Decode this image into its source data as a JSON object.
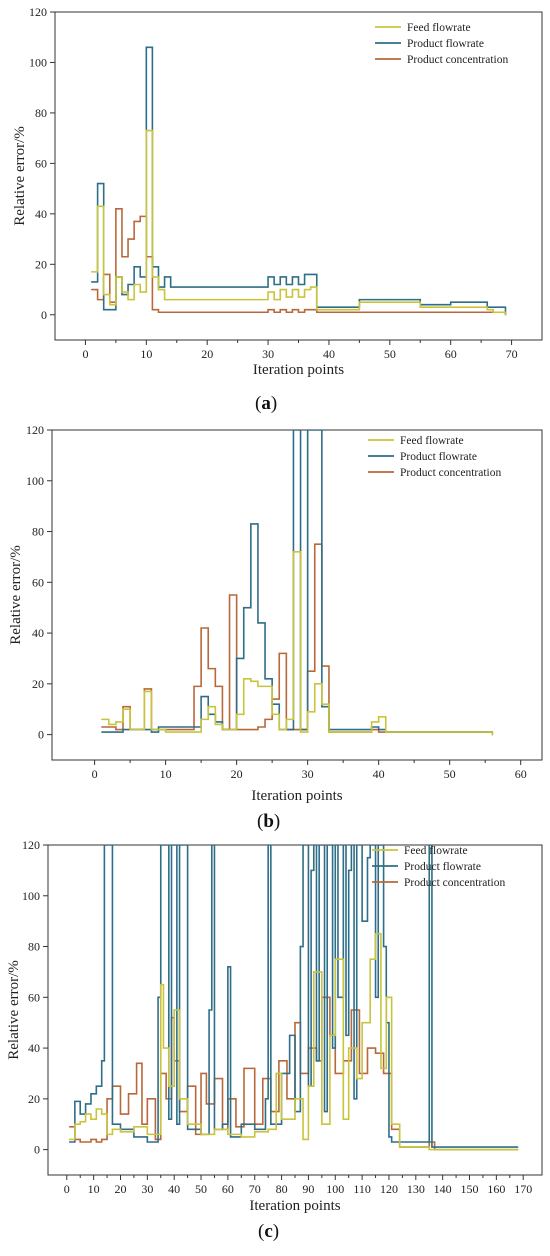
{
  "colors": {
    "feed": "#c9c43c",
    "product": "#2f6e88",
    "concentration": "#b8683a",
    "axis": "#333333"
  },
  "chart_data": [
    {
      "id": "a",
      "type": "line",
      "panel_label": "a",
      "xlabel": "Iteration points",
      "ylabel": "Relative error/%",
      "xlim": [
        -5,
        75
      ],
      "ylim": [
        -10,
        120
      ],
      "xticks": [
        0,
        10,
        20,
        30,
        40,
        50,
        60,
        70
      ],
      "yticks": [
        0,
        20,
        40,
        60,
        80,
        100,
        120
      ],
      "legend_position": "top-right",
      "series": [
        {
          "name": "Feed flowrate",
          "color_key": "feed",
          "x": [
            1,
            2,
            3,
            4,
            5,
            6,
            7,
            8,
            9,
            10,
            11,
            12,
            13,
            14,
            20,
            29,
            30,
            31,
            32,
            33,
            34,
            35,
            36,
            37,
            38,
            44,
            45,
            50,
            54,
            55,
            60,
            66,
            67,
            69
          ],
          "y": [
            17,
            43,
            8,
            4,
            15,
            9,
            6,
            12,
            9,
            73,
            15,
            10,
            6,
            6,
            6,
            6,
            9,
            6,
            10,
            7,
            10,
            7,
            10,
            11,
            2,
            2,
            5,
            5,
            5,
            3,
            3,
            2,
            1,
            0
          ]
        },
        {
          "name": "Product flowrate",
          "color_key": "product",
          "x": [
            1,
            2,
            3,
            4,
            5,
            6,
            7,
            8,
            9,
            10,
            11,
            12,
            13,
            14,
            20,
            29,
            30,
            31,
            32,
            33,
            34,
            35,
            36,
            37,
            38,
            44,
            45,
            50,
            54,
            55,
            60,
            66,
            67,
            69
          ],
          "y": [
            13,
            52,
            2,
            2,
            15,
            8,
            12,
            19,
            15,
            106,
            19,
            11,
            15,
            11,
            11,
            11,
            15,
            12,
            15,
            12,
            15,
            12,
            16,
            16,
            3,
            3,
            6,
            6,
            6,
            4,
            5,
            3,
            3,
            0
          ]
        },
        {
          "name": "Product concentration",
          "color_key": "concentration",
          "x": [
            1,
            2,
            3,
            4,
            5,
            6,
            7,
            8,
            9,
            10,
            11,
            12,
            13,
            14,
            20,
            29,
            30,
            31,
            32,
            33,
            34,
            35,
            36,
            37,
            38,
            44,
            45,
            50,
            54,
            55,
            60,
            66,
            67,
            69
          ],
          "y": [
            10,
            6,
            16,
            5,
            42,
            23,
            30,
            37,
            39,
            23,
            2,
            1,
            1,
            1,
            1,
            1,
            2,
            1,
            2,
            1,
            2,
            1,
            2,
            2,
            1,
            1,
            1,
            1,
            1,
            1,
            1,
            1,
            1,
            0
          ]
        }
      ]
    },
    {
      "id": "b",
      "type": "line",
      "panel_label": "b",
      "xlabel": "Iteration points",
      "ylabel": "Relative error/%",
      "xlim": [
        -6,
        63
      ],
      "ylim": [
        -10,
        120
      ],
      "xticks": [
        0,
        10,
        20,
        30,
        40,
        50,
        60
      ],
      "yticks": [
        0,
        20,
        40,
        60,
        80,
        100,
        120
      ],
      "legend_position": "top-right",
      "series": [
        {
          "name": "Feed flowrate",
          "color_key": "feed",
          "x": [
            1,
            2,
            3,
            4,
            5,
            6,
            7,
            8,
            9,
            10,
            12,
            14,
            15,
            16,
            17,
            18,
            19,
            20,
            21,
            22,
            23,
            24,
            25,
            26,
            27,
            28,
            29,
            30,
            31,
            32,
            33,
            38,
            39,
            40,
            41,
            45,
            56
          ],
          "y": [
            6,
            4,
            5,
            10,
            2,
            2,
            17,
            2,
            2,
            1,
            1,
            1,
            6,
            11,
            4,
            2,
            2,
            8,
            22,
            21,
            19,
            19,
            8,
            2,
            6,
            72,
            1,
            9,
            20,
            12,
            1,
            1,
            5,
            7,
            1,
            1,
            0
          ]
        },
        {
          "name": "Product flowrate",
          "color_key": "product",
          "x": [
            1,
            2,
            3,
            4,
            5,
            6,
            7,
            8,
            9,
            10,
            12,
            14,
            15,
            16,
            17,
            18,
            19,
            20,
            21,
            22,
            23,
            24,
            25,
            26,
            27,
            28,
            29,
            30,
            31,
            32,
            33,
            38,
            39,
            40,
            41,
            45,
            56
          ],
          "y": [
            1,
            1,
            1,
            2,
            2,
            2,
            2,
            1,
            3,
            3,
            3,
            3,
            15,
            8,
            5,
            2,
            2,
            30,
            50,
            83,
            44,
            22,
            12,
            2,
            2,
            120,
            2,
            120,
            120,
            11,
            2,
            2,
            3,
            2,
            1,
            1,
            0
          ]
        },
        {
          "name": "Product concentration",
          "color_key": "concentration",
          "x": [
            1,
            2,
            3,
            4,
            5,
            6,
            7,
            8,
            9,
            10,
            12,
            14,
            15,
            16,
            17,
            18,
            19,
            20,
            21,
            22,
            23,
            24,
            25,
            26,
            27,
            28,
            29,
            30,
            31,
            32,
            33,
            38,
            39,
            40,
            41,
            45,
            56
          ],
          "y": [
            3,
            3,
            2,
            11,
            2,
            2,
            18,
            2,
            2,
            2,
            2,
            19,
            42,
            26,
            19,
            2,
            55,
            2,
            2,
            2,
            3,
            6,
            14,
            32,
            2,
            2,
            2,
            25,
            75,
            27,
            1,
            1,
            2,
            1,
            1,
            1,
            0
          ]
        }
      ]
    },
    {
      "id": "c",
      "type": "line",
      "panel_label": "c",
      "xlabel": "Iteration points",
      "ylabel": "Relative error/%",
      "xlim": [
        -7,
        177
      ],
      "ylim": [
        -10,
        120
      ],
      "xticks": [
        0,
        10,
        20,
        30,
        40,
        50,
        60,
        70,
        80,
        90,
        100,
        110,
        120,
        130,
        140,
        150,
        160,
        170
      ],
      "yticks": [
        0,
        20,
        40,
        60,
        80,
        100,
        120
      ],
      "legend_position": "top-right",
      "series": [
        {
          "name": "Feed flowrate",
          "color_key": "feed",
          "x": [
            1,
            3,
            5,
            7,
            9,
            11,
            13,
            15,
            17,
            20,
            25,
            30,
            35,
            36,
            38,
            40,
            42,
            45,
            50,
            55,
            60,
            65,
            70,
            75,
            78,
            80,
            85,
            88,
            90,
            92,
            95,
            98,
            100,
            103,
            105,
            108,
            110,
            113,
            115,
            117,
            119,
            121,
            124,
            135,
            137,
            168
          ],
          "y": [
            4,
            10,
            11,
            14,
            12,
            16,
            14,
            6,
            8,
            7,
            9,
            6,
            65,
            40,
            25,
            55,
            20,
            10,
            6,
            8,
            6,
            5,
            7,
            8,
            30,
            12,
            20,
            4,
            25,
            70,
            10,
            45,
            75,
            12,
            40,
            28,
            50,
            75,
            85,
            32,
            60,
            10,
            1,
            0,
            0,
            0
          ]
        },
        {
          "name": "Product flowrate",
          "color_key": "product",
          "x": [
            1,
            3,
            5,
            7,
            9,
            11,
            13,
            14,
            15,
            17,
            20,
            25,
            30,
            34,
            35,
            36,
            38,
            39,
            40,
            41,
            42,
            45,
            50,
            53,
            54,
            55,
            58,
            60,
            61,
            65,
            70,
            74,
            75,
            76,
            80,
            83,
            85,
            87,
            88,
            90,
            91,
            92,
            93,
            94,
            95,
            96,
            97,
            98,
            99,
            100,
            101,
            103,
            104,
            105,
            106,
            107,
            108,
            110,
            112,
            113,
            115,
            116,
            117,
            118,
            119,
            120,
            121,
            135,
            136,
            168
          ],
          "y": [
            3,
            19,
            14,
            18,
            22,
            25,
            35,
            120,
            120,
            10,
            8,
            5,
            3,
            60,
            120,
            120,
            12,
            120,
            120,
            10,
            120,
            8,
            6,
            55,
            120,
            8,
            10,
            72,
            5,
            10,
            8,
            20,
            120,
            10,
            30,
            45,
            15,
            80,
            120,
            25,
            110,
            120,
            35,
            120,
            120,
            15,
            120,
            120,
            40,
            120,
            60,
            120,
            45,
            110,
            120,
            20,
            120,
            90,
            115,
            120,
            60,
            120,
            120,
            80,
            50,
            5,
            3,
            120,
            1,
            1
          ]
        },
        {
          "name": "Product concentration",
          "color_key": "concentration",
          "x": [
            1,
            3,
            5,
            7,
            9,
            11,
            13,
            15,
            17,
            20,
            23,
            26,
            28,
            30,
            33,
            35,
            37,
            39,
            40,
            42,
            45,
            48,
            50,
            52,
            55,
            58,
            60,
            63,
            66,
            70,
            73,
            76,
            79,
            82,
            85,
            87,
            90,
            93,
            95,
            98,
            100,
            103,
            106,
            109,
            112,
            115,
            118,
            121,
            124,
            135,
            137,
            168
          ],
          "y": [
            9,
            4,
            3,
            3,
            4,
            3,
            4,
            20,
            25,
            14,
            22,
            34,
            10,
            20,
            4,
            30,
            20,
            52,
            35,
            15,
            25,
            6,
            30,
            18,
            28,
            8,
            20,
            9,
            32,
            10,
            28,
            15,
            35,
            20,
            50,
            30,
            40,
            35,
            60,
            45,
            30,
            35,
            55,
            30,
            40,
            38,
            30,
            8,
            1,
            3,
            0,
            0
          ]
        }
      ]
    }
  ]
}
